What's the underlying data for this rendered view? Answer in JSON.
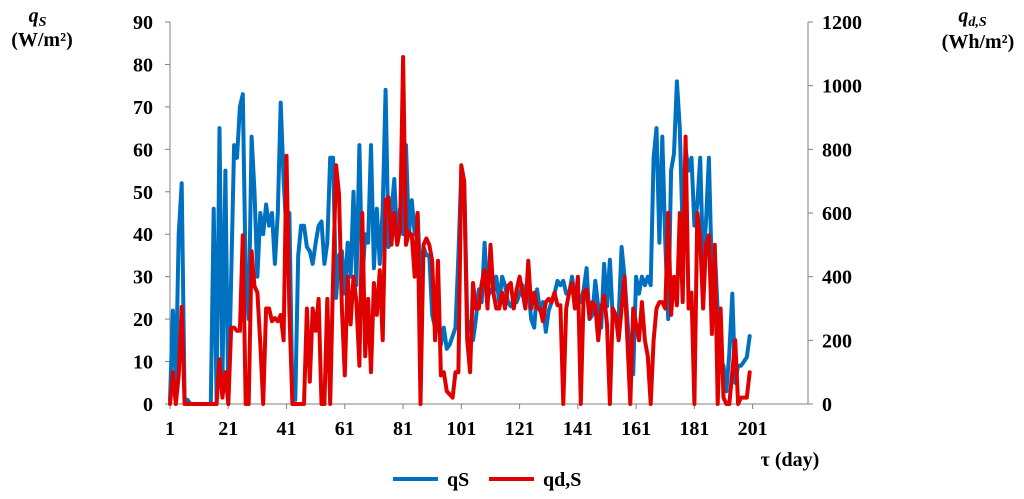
{
  "chart_data": {
    "type": "line",
    "xlabel": "τ (day)",
    "x_ticks": [
      1,
      21,
      41,
      61,
      81,
      101,
      121,
      141,
      161,
      181,
      201
    ],
    "xlim": [
      1,
      220
    ],
    "y_left": {
      "label_main": "q",
      "label_sub": "S",
      "label_unit": "(W/m²)",
      "ylim": [
        0,
        90
      ],
      "ticks": [
        0,
        10,
        20,
        30,
        40,
        50,
        60,
        70,
        80,
        90
      ]
    },
    "y_right": {
      "label_main": "q",
      "label_sub": "d,S",
      "label_unit": "(Wh/m²)",
      "ylim": [
        0,
        1200
      ],
      "ticks": [
        0,
        200,
        400,
        600,
        800,
        1000,
        1200
      ]
    },
    "grid": false,
    "legend_position": "bottom",
    "series": [
      {
        "name": "qS",
        "axis": "left",
        "color": "#0070C0",
        "values": [
          1,
          22,
          5,
          40,
          52,
          1,
          1,
          0,
          0,
          0,
          0,
          0,
          0,
          0,
          0,
          46,
          1,
          65,
          5,
          55,
          0,
          30,
          61,
          58,
          70,
          73,
          30,
          20,
          63,
          50,
          30,
          45,
          40,
          47,
          42,
          45,
          33,
          45,
          71,
          53,
          40,
          45,
          1,
          1,
          35,
          42,
          42,
          37,
          36,
          33,
          38,
          42,
          43,
          33,
          38,
          58,
          58,
          25,
          35,
          36,
          26,
          38,
          30,
          50,
          28,
          61,
          29,
          40,
          38,
          61,
          32,
          46,
          33,
          46,
          74,
          37,
          45,
          53,
          38,
          46,
          40,
          61,
          40,
          48,
          40,
          45,
          28,
          37,
          35,
          35,
          21,
          18,
          20,
          14,
          18,
          13,
          14,
          16,
          18,
          35,
          55,
          52,
          20,
          18,
          15,
          20,
          27,
          24,
          38,
          25,
          27,
          26,
          30,
          24,
          30,
          28,
          24,
          23,
          25,
          24,
          26,
          28,
          24,
          27,
          20,
          18,
          27,
          22,
          24,
          17,
          22,
          24,
          26,
          29,
          28,
          29,
          26,
          26,
          30,
          25,
          26,
          24,
          27,
          32,
          20,
          21,
          29,
          23,
          18,
          33,
          23,
          34,
          20,
          21,
          20,
          37,
          30,
          20,
          10,
          7,
          30,
          26,
          30,
          28,
          30,
          28,
          58,
          65,
          38,
          63,
          38,
          20,
          55,
          59,
          76,
          65,
          40,
          60,
          55,
          58,
          42,
          47,
          58,
          33,
          43,
          58,
          30,
          36,
          22,
          10,
          9,
          3,
          12,
          26,
          5,
          9,
          9,
          10,
          11,
          16
        ],
        "x_start": 1
      },
      {
        "name": "qd,S",
        "axis": "right",
        "color": "#E00000",
        "values": [
          0,
          100,
          0,
          90,
          305,
          0,
          0,
          0,
          0,
          0,
          0,
          0,
          0,
          0,
          0,
          0,
          0,
          140,
          20,
          100,
          0,
          240,
          240,
          230,
          230,
          530,
          0,
          0,
          480,
          370,
          350,
          190,
          0,
          300,
          300,
          260,
          270,
          260,
          280,
          200,
          780,
          290,
          0,
          0,
          0,
          0,
          0,
          300,
          70,
          300,
          230,
          330,
          0,
          0,
          330,
          0,
          400,
          750,
          660,
          300,
          90,
          400,
          250,
          400,
          320,
          120,
          600,
          150,
          330,
          100,
          380,
          280,
          420,
          200,
          640,
          650,
          500,
          600,
          500,
          550,
          1090,
          500,
          540,
          530,
          400,
          600,
          0,
          500,
          520,
          500,
          450,
          200,
          450,
          90,
          100,
          40,
          30,
          20,
          100,
          100,
          750,
          700,
          200,
          100,
          380,
          300,
          300,
          380,
          420,
          300,
          500,
          350,
          300,
          300,
          350,
          300,
          370,
          380,
          300,
          360,
          400,
          350,
          300,
          450,
          300,
          350,
          300,
          300,
          260,
          320,
          330,
          320,
          350,
          310,
          310,
          0,
          300,
          350,
          380,
          300,
          400,
          0,
          350,
          360,
          270,
          320,
          310,
          200,
          300,
          340,
          250,
          0,
          300,
          280,
          200,
          300,
          400,
          200,
          0,
          300,
          250,
          200,
          320,
          200,
          150,
          0,
          200,
          300,
          320,
          320,
          300,
          600,
          280,
          400,
          310,
          600,
          320,
          840,
          300,
          350,
          0,
          600,
          520,
          300,
          500,
          530,
          220,
          500,
          0,
          300,
          20,
          0,
          0,
          100,
          200,
          0,
          20,
          20,
          20,
          100
        ]
      }
    ],
    "legend": [
      {
        "label": "qS",
        "color": "#0070C0"
      },
      {
        "label": "qd,S",
        "color": "#E00000"
      }
    ]
  }
}
